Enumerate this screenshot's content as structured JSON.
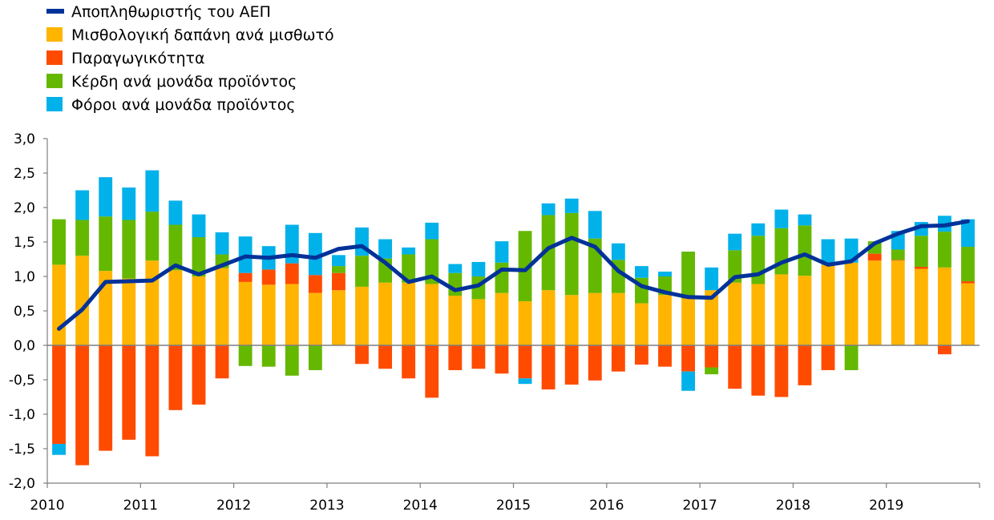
{
  "chart_data": {
    "type": "bar",
    "stacked": true,
    "legend_position": "top-left",
    "grid": false,
    "ylim": [
      -2.0,
      3.0
    ],
    "yticks": [
      "3,0",
      "2,5",
      "2,0",
      "1,5",
      "1,0",
      "0,5",
      "0,0",
      "-0,5",
      "-1,0",
      "-1,5",
      "-2,0"
    ],
    "ytick_values": [
      3.0,
      2.5,
      2.0,
      1.5,
      1.0,
      0.5,
      0.0,
      -0.5,
      -1.0,
      -1.5,
      -2.0
    ],
    "xticks": [
      "2010",
      "2011",
      "2012",
      "2013",
      "2014",
      "2015",
      "2016",
      "2017",
      "2018",
      "2019"
    ],
    "categories": [
      "2010Q1",
      "2010Q2",
      "2010Q3",
      "2010Q4",
      "2011Q1",
      "2011Q2",
      "2011Q3",
      "2011Q4",
      "2012Q1",
      "2012Q2",
      "2012Q3",
      "2012Q4",
      "2013Q1",
      "2013Q2",
      "2013Q3",
      "2013Q4",
      "2014Q1",
      "2014Q2",
      "2014Q3",
      "2014Q4",
      "2015Q1",
      "2015Q2",
      "2015Q3",
      "2015Q4",
      "2016Q1",
      "2016Q2",
      "2016Q3",
      "2016Q4",
      "2017Q1",
      "2017Q2",
      "2017Q3",
      "2017Q4",
      "2018Q1",
      "2018Q2",
      "2018Q3",
      "2018Q4",
      "2019Q1",
      "2019Q2",
      "2019Q3",
      "2019Q4"
    ],
    "series": [
      {
        "name": "Μισθολογική δαπάνη ανά μισθωτό",
        "color": "#FFB400",
        "values": [
          1.17,
          1.3,
          1.08,
          0.97,
          1.23,
          1.09,
          1.0,
          1.12,
          0.92,
          0.88,
          0.89,
          0.76,
          0.8,
          0.85,
          0.91,
          0.91,
          0.89,
          0.72,
          0.67,
          0.76,
          0.64,
          0.8,
          0.73,
          0.76,
          0.76,
          0.61,
          0.73,
          0.68,
          0.8,
          0.91,
          0.89,
          1.03,
          1.01,
          1.17,
          1.2,
          1.23,
          1.23,
          1.11,
          1.13,
          0.9
        ]
      },
      {
        "name": "Παραγωγικότητα",
        "color": "#FF4B00",
        "values": [
          -1.43,
          -1.74,
          -1.53,
          -1.37,
          -1.61,
          -0.94,
          -0.86,
          -0.48,
          0.13,
          0.22,
          0.3,
          0.26,
          0.25,
          -0.27,
          -0.34,
          -0.48,
          -0.76,
          -0.36,
          -0.34,
          -0.41,
          -0.48,
          -0.64,
          -0.57,
          -0.51,
          -0.38,
          -0.28,
          -0.31,
          -0.38,
          -0.32,
          -0.63,
          -0.73,
          -0.75,
          -0.58,
          -0.36,
          0.0,
          0.1,
          0.01,
          0.03,
          -0.13,
          0.03
        ]
      },
      {
        "name": "Κέρδη ανά μονάδα προϊόντος",
        "color": "#65B800",
        "values": [
          0.66,
          0.52,
          0.79,
          0.85,
          0.71,
          0.66,
          0.57,
          0.2,
          -0.3,
          -0.31,
          -0.44,
          -0.36,
          0.1,
          0.45,
          0.35,
          0.41,
          0.65,
          0.33,
          0.33,
          0.44,
          1.02,
          1.09,
          1.19,
          0.79,
          0.48,
          0.37,
          0.27,
          0.68,
          -0.1,
          0.47,
          0.7,
          0.67,
          0.73,
          0.0,
          -0.36,
          0.18,
          0.15,
          0.45,
          0.52,
          0.5
        ]
      },
      {
        "name": "Φόροι ανά μονάδα προϊόντος",
        "color": "#00B1EA",
        "values": [
          -0.16,
          0.43,
          0.57,
          0.47,
          0.6,
          0.35,
          0.33,
          0.32,
          0.53,
          0.34,
          0.56,
          0.61,
          0.16,
          0.41,
          0.28,
          0.1,
          0.24,
          0.13,
          0.21,
          0.31,
          -0.08,
          0.17,
          0.21,
          0.4,
          0.24,
          0.17,
          0.07,
          -0.28,
          0.33,
          0.24,
          0.18,
          0.27,
          0.16,
          0.37,
          0.35,
          0.0,
          0.27,
          0.2,
          0.23,
          0.4
        ]
      }
    ],
    "line": {
      "name": "Αποπληθωριστής του ΑΕΠ",
      "color": "#003299",
      "values": [
        0.24,
        0.52,
        0.92,
        0.93,
        0.94,
        1.16,
        1.03,
        1.16,
        1.29,
        1.27,
        1.31,
        1.27,
        1.4,
        1.44,
        1.2,
        0.92,
        1.0,
        0.8,
        0.87,
        1.1,
        1.09,
        1.41,
        1.56,
        1.43,
        1.08,
        0.86,
        0.77,
        0.7,
        0.69,
        0.99,
        1.03,
        1.2,
        1.32,
        1.17,
        1.22,
        1.48,
        1.62,
        1.73,
        1.74,
        1.8
      ]
    }
  }
}
